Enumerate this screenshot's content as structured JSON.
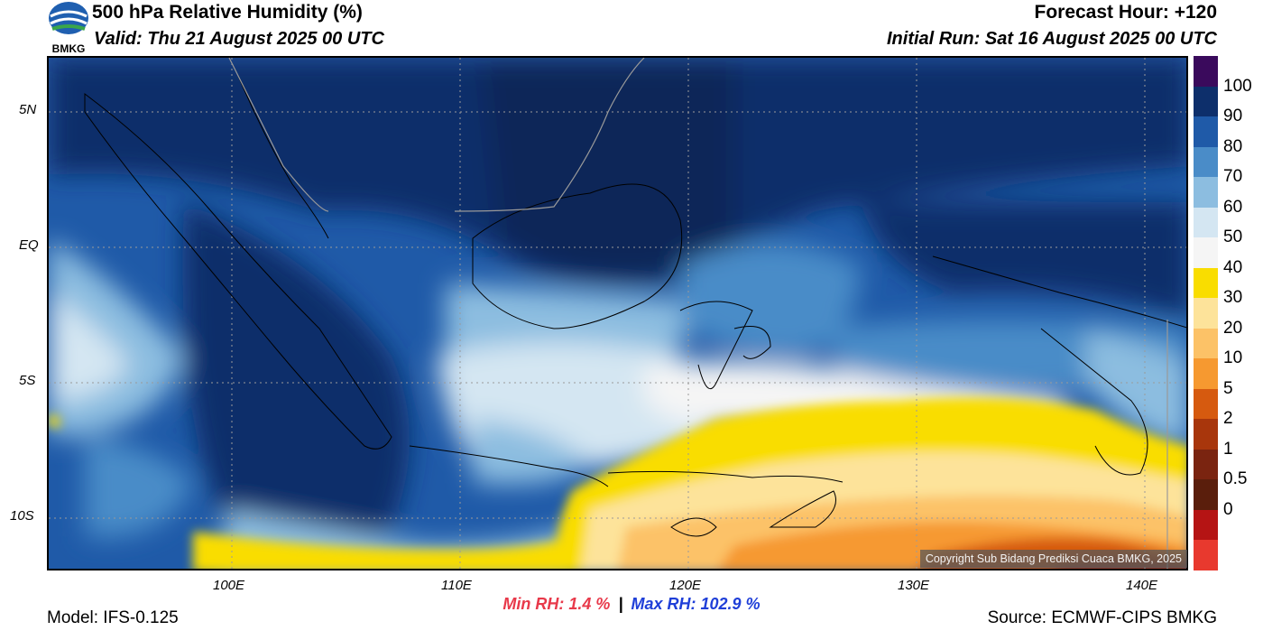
{
  "header": {
    "title": "500 hPa Relative Humidity (%)",
    "valid": "Valid: Thu 21 August 2025 00 UTC",
    "forecast_hour": "Forecast Hour: +120",
    "initial_run": "Initial Run: Sat 16 August 2025 00 UTC",
    "logo_text": "BMKG"
  },
  "map": {
    "lat_labels": [
      "5N",
      "EQ",
      "5S",
      "10S"
    ],
    "lon_labels": [
      "100E",
      "110E",
      "120E",
      "130E",
      "140E"
    ],
    "copyright": "Copyright Sub Bidang Prediksi Cuaca BMKG, 2025"
  },
  "colorbar": {
    "labels": [
      "100",
      "90",
      "80",
      "70",
      "60",
      "50",
      "40",
      "30",
      "20",
      "10",
      "5",
      "2",
      "1",
      "0.5",
      "0"
    ],
    "colors": [
      "#3a0a5c",
      "#0d2f6b",
      "#1f5aa8",
      "#4a8cc8",
      "#8cbde0",
      "#d4e6f2",
      "#f5f5f5",
      "#f9dd00",
      "#fde39a",
      "#fcc267",
      "#f69930",
      "#d65a0f",
      "#a8360c",
      "#7a2410",
      "#5a1e0c",
      "#b51414",
      "#e8392e"
    ]
  },
  "stats": {
    "min_label": "Min RH:   1.4 %",
    "separator": "|",
    "max_label": "Max RH: 102.9 %"
  },
  "footer": {
    "model": "Model: IFS-0.125",
    "source": "Source: ECMWF-CIPS BMKG"
  }
}
